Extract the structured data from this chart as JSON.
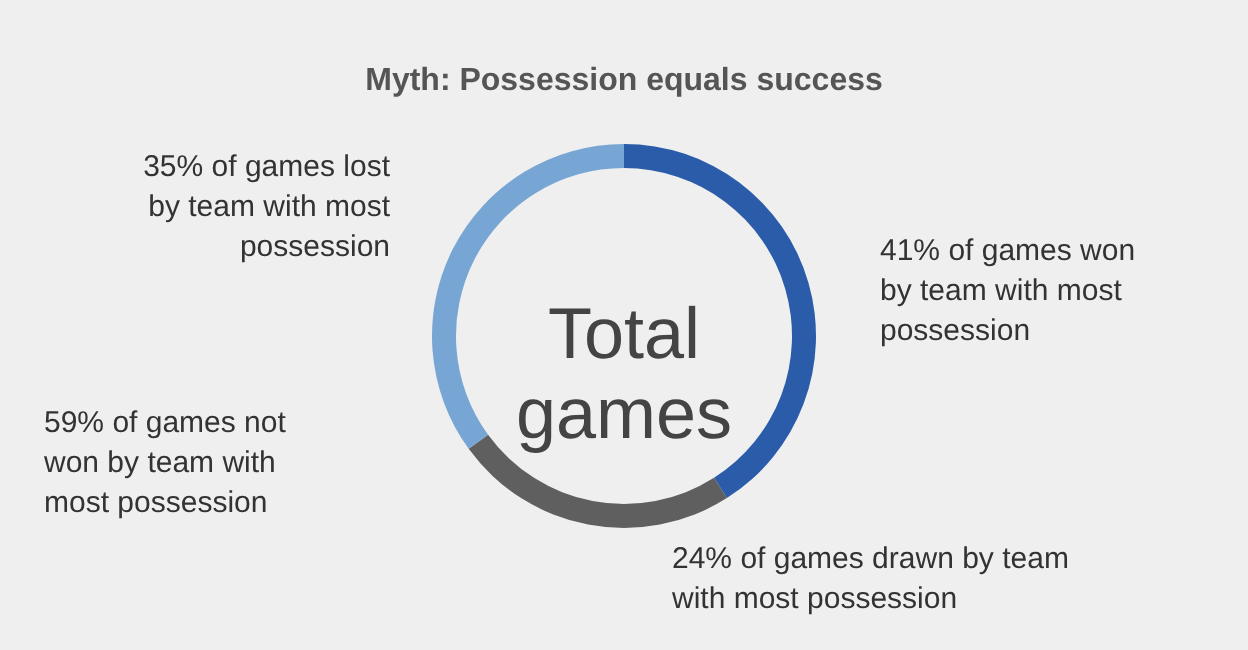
{
  "chart_data": {
    "type": "donut",
    "title": "Myth: Possession equals success",
    "categories": [
      "41% of games won by team with most possession",
      "24% of games drawn by team with most possession",
      "35% of games lost by team with most possession"
    ],
    "values": [
      41,
      24,
      35
    ],
    "colors": [
      "#2a5caa",
      "#5f5f5f",
      "#78a6d4"
    ],
    "annotations": [
      "Total games",
      "59% of games not won by team with most possession"
    ]
  }
}
